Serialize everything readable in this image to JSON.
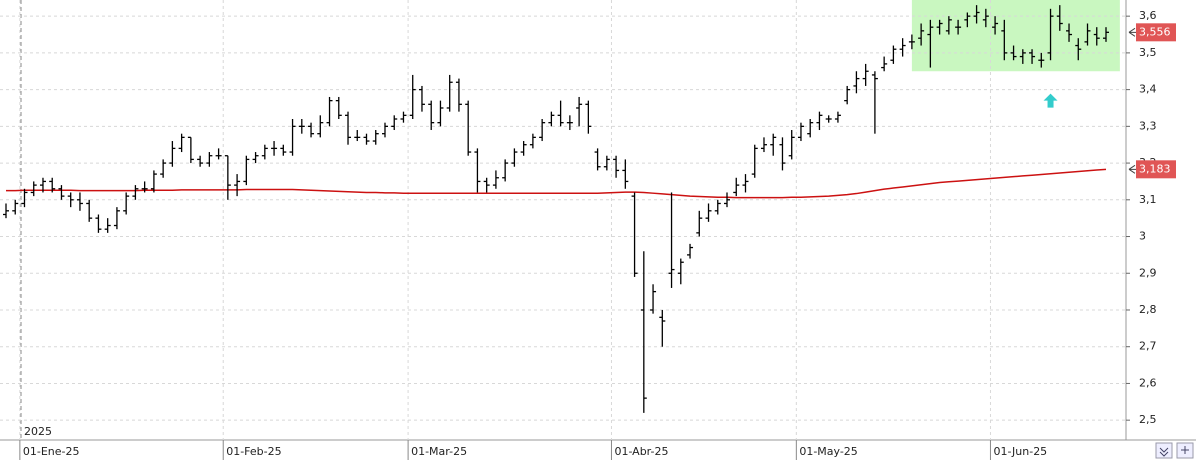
{
  "chart_data": {
    "type": "ohlc",
    "categories": [
      null,
      null,
      "01-Ene-25",
      null,
      null,
      null,
      null,
      null,
      null,
      null,
      null,
      null,
      null,
      null,
      null,
      null,
      null,
      null,
      null,
      null,
      null,
      null,
      null,
      null,
      "01-Feb-25",
      null,
      null,
      null,
      null,
      null,
      null,
      null,
      null,
      null,
      null,
      null,
      null,
      null,
      null,
      null,
      null,
      null,
      null,
      null,
      "01-Mar-25",
      null,
      null,
      null,
      null,
      null,
      null,
      null,
      null,
      null,
      null,
      null,
      null,
      null,
      null,
      null,
      null,
      null,
      null,
      null,
      null,
      null,
      "01-Abr-25",
      null,
      null,
      null,
      null,
      null,
      null,
      null,
      null,
      null,
      null,
      null,
      null,
      null,
      null,
      null,
      null,
      null,
      null,
      null,
      "01-May-25",
      null,
      null,
      null,
      null,
      null,
      null,
      null,
      null,
      null,
      null,
      null,
      null,
      null,
      null,
      null,
      null,
      null,
      null,
      null,
      null,
      "01-Jun-25",
      null,
      null,
      null,
      null,
      null,
      null,
      null,
      null,
      null,
      null,
      null,
      null
    ],
    "ohlc": [
      [
        3.06,
        3.09,
        3.05,
        3.07
      ],
      [
        3.07,
        3.1,
        3.06,
        3.09
      ],
      [
        3.09,
        3.13,
        3.08,
        3.12
      ],
      [
        3.12,
        3.15,
        3.11,
        3.14
      ],
      [
        3.14,
        3.16,
        3.12,
        3.15
      ],
      [
        3.15,
        3.16,
        3.12,
        3.13
      ],
      [
        3.13,
        3.14,
        3.1,
        3.11
      ],
      [
        3.11,
        3.12,
        3.08,
        3.1
      ],
      [
        3.1,
        3.12,
        3.07,
        3.09
      ],
      [
        3.09,
        3.1,
        3.04,
        3.05
      ],
      [
        3.05,
        3.06,
        3.01,
        3.02
      ],
      [
        3.02,
        3.05,
        3.01,
        3.03
      ],
      [
        3.03,
        3.08,
        3.02,
        3.07
      ],
      [
        3.07,
        3.12,
        3.06,
        3.11
      ],
      [
        3.11,
        3.14,
        3.1,
        3.13
      ],
      [
        3.13,
        3.15,
        3.12,
        3.13
      ],
      [
        3.13,
        3.18,
        3.12,
        3.17
      ],
      [
        3.17,
        3.21,
        3.16,
        3.2
      ],
      [
        3.2,
        3.26,
        3.19,
        3.24
      ],
      [
        3.24,
        3.28,
        3.23,
        3.27
      ],
      [
        3.27,
        3.27,
        3.2,
        3.21
      ],
      [
        3.21,
        3.22,
        3.19,
        3.2
      ],
      [
        3.2,
        3.23,
        3.19,
        3.22
      ],
      [
        3.22,
        3.24,
        3.21,
        3.22
      ],
      [
        3.22,
        3.22,
        3.1,
        3.14
      ],
      [
        3.14,
        3.17,
        3.11,
        3.15
      ],
      [
        3.15,
        3.22,
        3.14,
        3.21
      ],
      [
        3.21,
        3.23,
        3.2,
        3.22
      ],
      [
        3.22,
        3.25,
        3.21,
        3.24
      ],
      [
        3.24,
        3.26,
        3.22,
        3.24
      ],
      [
        3.24,
        3.25,
        3.22,
        3.23
      ],
      [
        3.23,
        3.32,
        3.22,
        3.3
      ],
      [
        3.3,
        3.32,
        3.28,
        3.3
      ],
      [
        3.3,
        3.31,
        3.27,
        3.28
      ],
      [
        3.28,
        3.33,
        3.27,
        3.31
      ],
      [
        3.31,
        3.38,
        3.3,
        3.37
      ],
      [
        3.37,
        3.38,
        3.32,
        3.33
      ],
      [
        3.33,
        3.34,
        3.25,
        3.27
      ],
      [
        3.27,
        3.29,
        3.26,
        3.27
      ],
      [
        3.27,
        3.28,
        3.25,
        3.26
      ],
      [
        3.26,
        3.29,
        3.25,
        3.28
      ],
      [
        3.28,
        3.31,
        3.27,
        3.3
      ],
      [
        3.3,
        3.33,
        3.29,
        3.32
      ],
      [
        3.32,
        3.34,
        3.31,
        3.33
      ],
      [
        3.33,
        3.44,
        3.32,
        3.4
      ],
      [
        3.4,
        3.41,
        3.34,
        3.36
      ],
      [
        3.36,
        3.37,
        3.29,
        3.31
      ],
      [
        3.31,
        3.37,
        3.3,
        3.35
      ],
      [
        3.35,
        3.44,
        3.34,
        3.42
      ],
      [
        3.42,
        3.43,
        3.34,
        3.36
      ],
      [
        3.36,
        3.37,
        3.22,
        3.23
      ],
      [
        3.23,
        3.24,
        3.12,
        3.15
      ],
      [
        3.15,
        3.16,
        3.12,
        3.14
      ],
      [
        3.14,
        3.18,
        3.13,
        3.16
      ],
      [
        3.16,
        3.21,
        3.15,
        3.2
      ],
      [
        3.2,
        3.24,
        3.19,
        3.23
      ],
      [
        3.23,
        3.26,
        3.22,
        3.25
      ],
      [
        3.25,
        3.28,
        3.24,
        3.27
      ],
      [
        3.27,
        3.32,
        3.26,
        3.31
      ],
      [
        3.31,
        3.34,
        3.3,
        3.33
      ],
      [
        3.33,
        3.37,
        3.3,
        3.31
      ],
      [
        3.31,
        3.33,
        3.29,
        3.31
      ],
      [
        3.35,
        3.38,
        3.3,
        3.36
      ],
      [
        3.36,
        3.37,
        3.28,
        3.3
      ],
      [
        3.23,
        3.24,
        3.18,
        3.19
      ],
      [
        3.19,
        3.22,
        3.18,
        3.21
      ],
      [
        3.21,
        3.22,
        3.16,
        3.18
      ],
      [
        3.18,
        3.21,
        3.13,
        3.15
      ],
      [
        3.11,
        3.12,
        2.89,
        2.9
      ],
      [
        2.8,
        2.96,
        2.52,
        2.56
      ],
      [
        2.8,
        2.87,
        2.79,
        2.85
      ],
      [
        2.78,
        2.8,
        2.7,
        2.77
      ],
      [
        2.9,
        3.12,
        2.86,
        2.91
      ],
      [
        2.9,
        2.94,
        2.87,
        2.93
      ],
      [
        2.95,
        2.98,
        2.94,
        2.97
      ],
      [
        3.01,
        3.07,
        3.0,
        3.05
      ],
      [
        3.05,
        3.09,
        3.04,
        3.07
      ],
      [
        3.07,
        3.1,
        3.06,
        3.09
      ],
      [
        3.09,
        3.12,
        3.08,
        3.1
      ],
      [
        3.12,
        3.16,
        3.11,
        3.14
      ],
      [
        3.14,
        3.17,
        3.12,
        3.15
      ],
      [
        3.17,
        3.25,
        3.16,
        3.24
      ],
      [
        3.24,
        3.27,
        3.23,
        3.25
      ],
      [
        3.25,
        3.28,
        3.22,
        3.27
      ],
      [
        3.25,
        3.27,
        3.18,
        3.2
      ],
      [
        3.22,
        3.29,
        3.21,
        3.27
      ],
      [
        3.27,
        3.31,
        3.26,
        3.3
      ],
      [
        3.28,
        3.32,
        3.27,
        3.31
      ],
      [
        3.31,
        3.34,
        3.29,
        3.33
      ],
      [
        3.32,
        3.33,
        3.31,
        3.32
      ],
      [
        3.32,
        3.34,
        3.31,
        3.33
      ],
      [
        3.37,
        3.41,
        3.36,
        3.4
      ],
      [
        3.41,
        3.45,
        3.39,
        3.43
      ],
      [
        3.43,
        3.47,
        3.41,
        3.45
      ],
      [
        3.44,
        3.45,
        3.28,
        3.43
      ],
      [
        3.46,
        3.49,
        3.45,
        3.47
      ],
      [
        3.48,
        3.52,
        3.47,
        3.51
      ],
      [
        3.51,
        3.54,
        3.49,
        3.52
      ],
      [
        3.53,
        3.55,
        3.51,
        3.53
      ],
      [
        3.54,
        3.58,
        3.52,
        3.56
      ],
      [
        3.55,
        3.59,
        3.46,
        3.57
      ],
      [
        3.57,
        3.59,
        3.55,
        3.58
      ],
      [
        3.56,
        3.6,
        3.55,
        3.59
      ],
      [
        3.57,
        3.59,
        3.55,
        3.57
      ],
      [
        3.59,
        3.61,
        3.57,
        3.6
      ],
      [
        3.6,
        3.63,
        3.58,
        3.61
      ],
      [
        3.59,
        3.62,
        3.57,
        3.6
      ],
      [
        3.57,
        3.6,
        3.55,
        3.58
      ],
      [
        3.56,
        3.59,
        3.48,
        3.5
      ],
      [
        3.5,
        3.52,
        3.48,
        3.49
      ],
      [
        3.49,
        3.51,
        3.47,
        3.5
      ],
      [
        3.5,
        3.51,
        3.47,
        3.49
      ],
      [
        3.48,
        3.5,
        3.46,
        3.48
      ],
      [
        3.5,
        3.62,
        3.48,
        3.6
      ],
      [
        3.6,
        3.63,
        3.56,
        3.58
      ],
      [
        3.56,
        3.58,
        3.53,
        3.55
      ],
      [
        3.52,
        3.54,
        3.48,
        3.51
      ],
      [
        3.53,
        3.58,
        3.52,
        3.56
      ],
      [
        3.55,
        3.57,
        3.52,
        3.54
      ],
      [
        3.54,
        3.57,
        3.53,
        3.556
      ]
    ],
    "bar_color": "#000000",
    "moving_average": {
      "color": "#cc1111",
      "values": [
        3.125,
        3.125,
        3.126,
        3.126,
        3.126,
        3.126,
        3.126,
        3.126,
        3.125,
        3.125,
        3.125,
        3.125,
        3.125,
        3.125,
        3.125,
        3.126,
        3.126,
        3.126,
        3.126,
        3.127,
        3.127,
        3.127,
        3.127,
        3.127,
        3.127,
        3.127,
        3.128,
        3.128,
        3.128,
        3.128,
        3.128,
        3.128,
        3.127,
        3.126,
        3.125,
        3.124,
        3.123,
        3.122,
        3.121,
        3.12,
        3.12,
        3.119,
        3.119,
        3.118,
        3.118,
        3.118,
        3.118,
        3.118,
        3.118,
        3.118,
        3.118,
        3.118,
        3.118,
        3.118,
        3.118,
        3.118,
        3.118,
        3.118,
        3.118,
        3.118,
        3.118,
        3.118,
        3.118,
        3.118,
        3.118,
        3.119,
        3.12,
        3.121,
        3.121,
        3.12,
        3.118,
        3.116,
        3.114,
        3.112,
        3.11,
        3.109,
        3.108,
        3.107,
        3.107,
        3.106,
        3.106,
        3.106,
        3.106,
        3.106,
        3.106,
        3.107,
        3.107,
        3.108,
        3.109,
        3.11,
        3.112,
        3.114,
        3.117,
        3.121,
        3.125,
        3.129,
        3.132,
        3.135,
        3.138,
        3.141,
        3.144,
        3.147,
        3.149,
        3.151,
        3.153,
        3.155,
        3.157,
        3.159,
        3.161,
        3.163,
        3.165,
        3.167,
        3.169,
        3.171,
        3.173,
        3.175,
        3.177,
        3.179,
        3.181,
        3.183
      ]
    },
    "price_labels": [
      {
        "value": 3.556,
        "label": "3,556",
        "color": "#e05555"
      },
      {
        "value": 3.183,
        "label": "3,183",
        "color": "#e05555"
      }
    ],
    "highlight": {
      "x0": 98,
      "x1": 120.5,
      "y0": 3.45,
      "y1": 3.644,
      "color": "#c9f7c0"
    },
    "arrow": {
      "x": 113,
      "y": 3.37,
      "color": "#33cccc"
    },
    "year_label": "2025",
    "ylim": [
      2.446,
      3.644
    ],
    "yticks": [
      {
        "value": 2.5,
        "label": "2,5"
      },
      {
        "value": 2.6,
        "label": "2,6"
      },
      {
        "value": 2.7,
        "label": "2,7"
      },
      {
        "value": 2.8,
        "label": "2,8"
      },
      {
        "value": 2.9,
        "label": "2,9"
      },
      3,
      {
        "value": 3.1,
        "label": "3,1"
      },
      {
        "value": 3.2,
        "label": "3,2"
      },
      {
        "value": 3.3,
        "label": "3,3"
      },
      {
        "value": 3.4,
        "label": "3,4"
      },
      {
        "value": 3.5,
        "label": "3,5"
      },
      {
        "value": 3.6,
        "label": "3,6"
      }
    ],
    "grid": true
  }
}
